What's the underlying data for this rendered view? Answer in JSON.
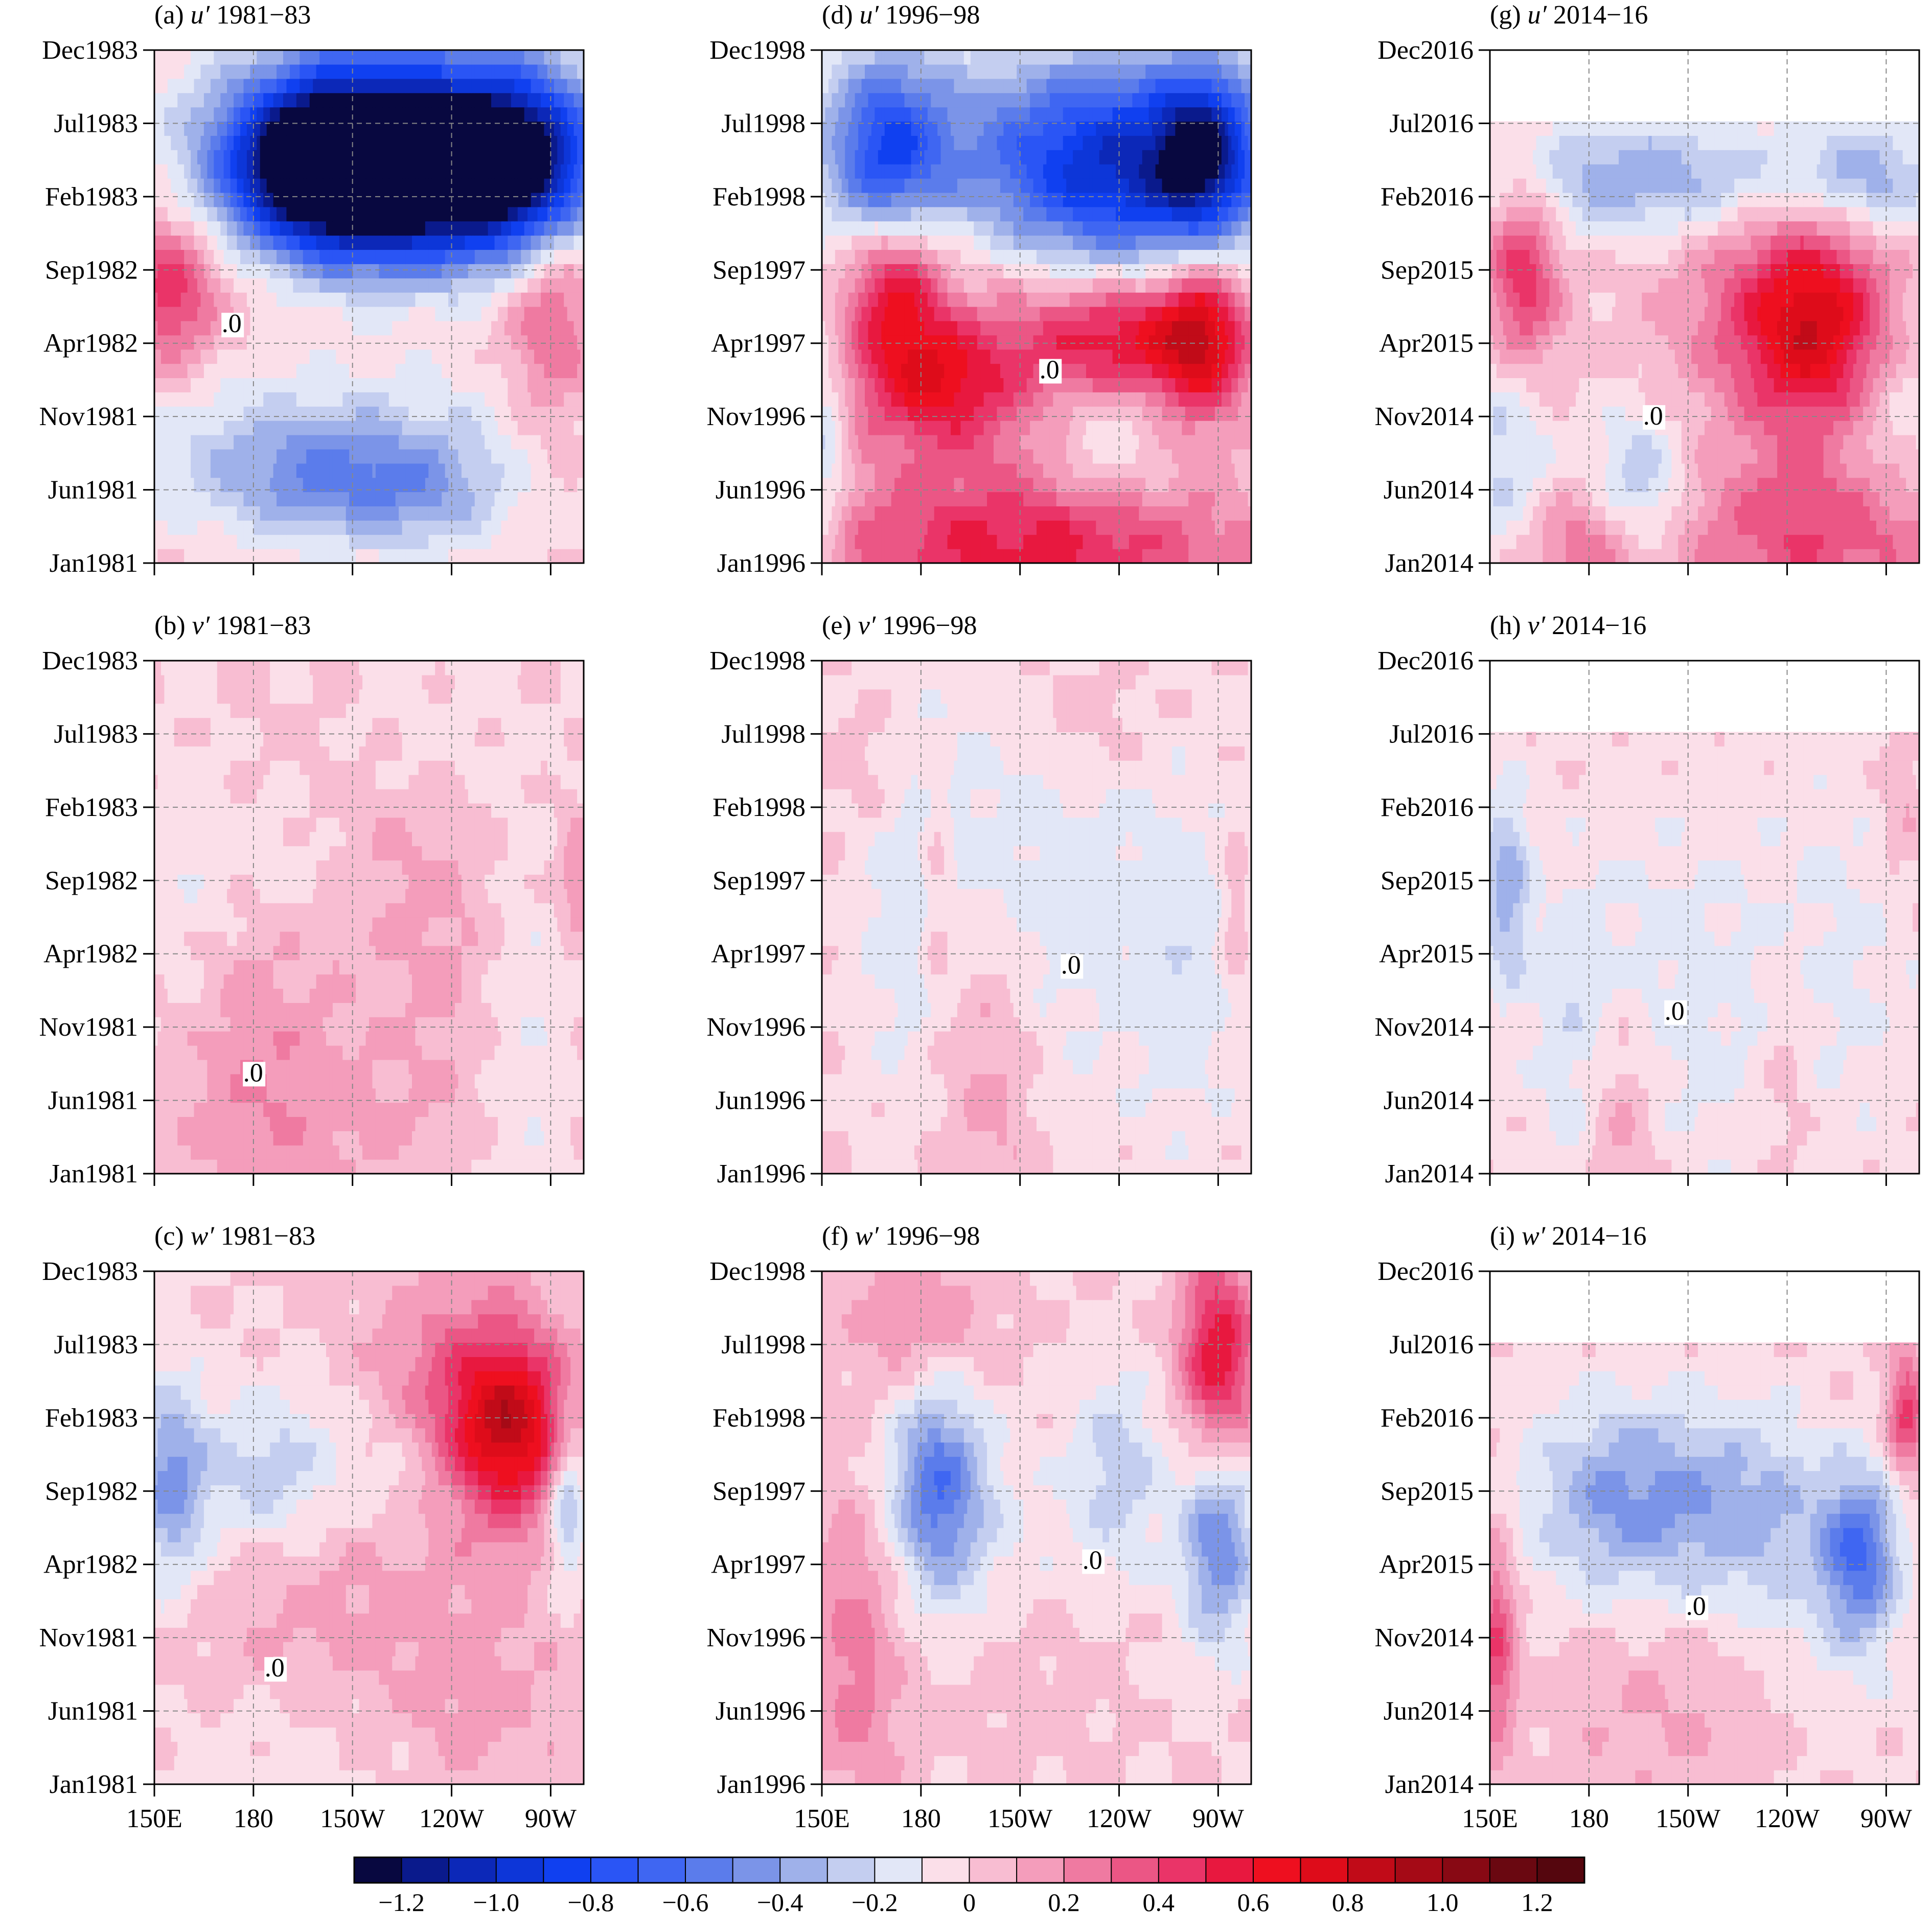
{
  "chart_data": {
    "type": "heatmap",
    "x_ticks": [
      "150E",
      "180",
      "150W",
      "120W",
      "90W"
    ],
    "x_tick_lon": [
      150,
      180,
      210,
      240,
      270
    ],
    "x_range_lon": [
      150,
      280
    ],
    "contour_label": ".0",
    "colorbar": {
      "ticks": [
        "−1.2",
        "−1.0",
        "−0.8",
        "−0.6",
        "−0.4",
        "−0.2",
        "0",
        "0.2",
        "0.4",
        "0.6",
        "0.8",
        "1.0",
        "1.2"
      ],
      "levels": [
        -1.3,
        1.3
      ],
      "colors": [
        "#080840",
        "#0a1a8c",
        "#0c28b8",
        "#0d36d8",
        "#1040f0",
        "#2a55f5",
        "#3f66f2",
        "#5b7ceb",
        "#7b94e8",
        "#9fb1ea",
        "#c4cef0",
        "#e2e7f7",
        "#fbdfe9",
        "#f8bdd2",
        "#f49dbb",
        "#ef7aa1",
        "#eb5685",
        "#ea3468",
        "#e8183f",
        "#ee0f1f",
        "#de0c1a",
        "#c10b18",
        "#a50a16",
        "#880914",
        "#6a0811",
        "#55060e"
      ]
    },
    "panels": [
      {
        "id": "a",
        "var": "u",
        "period": "1981−83",
        "y_ticks": [
          "Dec1983",
          "Jul1983",
          "Feb1983",
          "Sep1982",
          "Apr1982",
          "Nov1981",
          "Jun1981",
          "Jan1981"
        ],
        "months_with_data": 36,
        "blobs": [
          [
            225,
            27,
            30,
            5,
            -1.2
          ],
          [
            200,
            28,
            20,
            4,
            -0.9
          ],
          [
            260,
            28,
            15,
            4,
            -0.8
          ],
          [
            230,
            30,
            40,
            5,
            -0.5
          ],
          [
            155,
            19,
            10,
            4,
            0.4
          ],
          [
            270,
            17,
            10,
            6,
            0.3
          ],
          [
            215,
            20,
            60,
            4,
            0.15
          ],
          [
            195,
            6,
            25,
            3,
            -0.35
          ],
          [
            230,
            5,
            20,
            3,
            -0.3
          ],
          [
            200,
            10,
            60,
            4,
            -0.15
          ]
        ]
      },
      {
        "id": "d",
        "var": "u",
        "period": "1996−98",
        "y_ticks": [
          "Dec1998",
          "Jul1998",
          "Feb1998",
          "Sep1997",
          "Apr1997",
          "Nov1996",
          "Jun1996",
          "Jan1996"
        ],
        "months_with_data": 36,
        "blobs": [
          [
            170,
            28,
            12,
            5,
            -0.7
          ],
          [
            240,
            27,
            30,
            5,
            -0.8
          ],
          [
            265,
            29,
            10,
            4,
            -0.7
          ],
          [
            220,
            30,
            60,
            5,
            -0.3
          ],
          [
            172,
            20,
            10,
            4,
            0.6
          ],
          [
            265,
            16,
            10,
            4,
            0.65
          ],
          [
            240,
            16,
            20,
            3,
            0.5
          ],
          [
            185,
            13,
            15,
            3,
            0.45
          ],
          [
            200,
            9,
            40,
            12,
            0.25
          ],
          [
            220,
            1,
            50,
            3,
            0.35
          ],
          [
            235,
            9,
            15,
            3,
            -0.25
          ],
          [
            151,
            8,
            5,
            6,
            -0.3
          ]
        ]
      },
      {
        "id": "g",
        "var": "u",
        "period": "2014−16",
        "y_ticks": [
          "Dec2016",
          "Jul2016",
          "Feb2016",
          "Sep2015",
          "Apr2015",
          "Nov2014",
          "Jun2014",
          "Jan2014"
        ],
        "months_with_data": 31,
        "blobs": [
          [
            160,
            20,
            8,
            5,
            0.5
          ],
          [
            250,
            16,
            15,
            5,
            0.55
          ],
          [
            240,
            18,
            25,
            6,
            0.35
          ],
          [
            250,
            2,
            30,
            4,
            0.4
          ],
          [
            180,
            1,
            15,
            3,
            0.3
          ],
          [
            200,
            27,
            35,
            3,
            -0.4
          ],
          [
            265,
            27,
            15,
            3,
            -0.35
          ],
          [
            195,
            5,
            10,
            4,
            -0.35
          ],
          [
            155,
            8,
            10,
            6,
            -0.25
          ],
          [
            270,
            12,
            15,
            6,
            -0.2
          ]
        ]
      },
      {
        "id": "b",
        "var": "v",
        "period": "1981−83",
        "y_ticks": [
          "Dec1983",
          "Jul1983",
          "Feb1983",
          "Sep1982",
          "Apr1982",
          "Nov1981",
          "Jun1981",
          "Jan1981"
        ],
        "months_with_data": 36,
        "blobs": [
          [
            180,
            10,
            20,
            8,
            0.15
          ],
          [
            210,
            25,
            20,
            6,
            0.12
          ],
          [
            240,
            15,
            15,
            8,
            0.12
          ],
          [
            260,
            10,
            10,
            10,
            -0.12
          ],
          [
            190,
            22,
            15,
            4,
            -0.15
          ],
          [
            225,
            30,
            20,
            4,
            -0.1
          ],
          [
            278,
            21,
            4,
            3,
            0.2
          ],
          [
            200,
            4,
            30,
            4,
            0.1
          ],
          [
            160,
            18,
            10,
            8,
            -0.1
          ]
        ]
      },
      {
        "id": "e",
        "var": "v",
        "period": "1996−98",
        "y_ticks": [
          "Dec1998",
          "Jul1998",
          "Feb1998",
          "Sep1997",
          "Apr1997",
          "Nov1996",
          "Jun1996",
          "Jan1996"
        ],
        "months_with_data": 36,
        "blobs": [
          [
            180,
            20,
            15,
            10,
            -0.2
          ],
          [
            220,
            20,
            20,
            10,
            -0.15
          ],
          [
            260,
            15,
            15,
            10,
            -0.15
          ],
          [
            200,
            8,
            10,
            8,
            0.2
          ],
          [
            185,
            20,
            4,
            6,
            0.2
          ],
          [
            230,
            32,
            15,
            3,
            0.1
          ],
          [
            165,
            28,
            10,
            4,
            0.1
          ],
          [
            275,
            18,
            3,
            4,
            0.15
          ]
        ]
      },
      {
        "id": "h",
        "var": "v",
        "period": "2014−16",
        "y_ticks": [
          "Dec2016",
          "Jul2016",
          "Feb2016",
          "Sep2015",
          "Apr2015",
          "Nov2014",
          "Jun2014",
          "Jan2014"
        ],
        "months_with_data": 31,
        "blobs": [
          [
            155,
            20,
            5,
            5,
            -0.35
          ],
          [
            200,
            12,
            25,
            10,
            -0.15
          ],
          [
            255,
            15,
            20,
            10,
            -0.12
          ],
          [
            190,
            4,
            8,
            6,
            0.2
          ],
          [
            240,
            8,
            6,
            6,
            0.12
          ],
          [
            175,
            10,
            8,
            8,
            -0.1
          ],
          [
            275,
            25,
            5,
            4,
            0.12
          ]
        ]
      },
      {
        "id": "c",
        "var": "w",
        "period": "1981−83",
        "y_ticks": [
          "Dec1983",
          "Jul1983",
          "Feb1983",
          "Sep1982",
          "Apr1982",
          "Nov1981",
          "Jun1981",
          "Jan1981"
        ],
        "months_with_data": 36,
        "blobs": [
          [
            258,
            25,
            12,
            4,
            0.6
          ],
          [
            245,
            27,
            20,
            6,
            0.35
          ],
          [
            155,
            21,
            8,
            5,
            -0.45
          ],
          [
            185,
            22,
            15,
            4,
            -0.3
          ],
          [
            225,
            22,
            15,
            4,
            -0.2
          ],
          [
            275,
            20,
            4,
            4,
            -0.4
          ],
          [
            210,
            12,
            40,
            8,
            0.15
          ],
          [
            190,
            3,
            30,
            4,
            -0.1
          ],
          [
            250,
            5,
            15,
            4,
            0.1
          ]
        ]
      },
      {
        "id": "f",
        "var": "w",
        "period": "1996−98",
        "y_ticks": [
          "Dec1998",
          "Jul1998",
          "Feb1998",
          "Sep1997",
          "Apr1997",
          "Nov1996",
          "Jun1996",
          "Jan1996"
        ],
        "months_with_data": 36,
        "blobs": [
          [
            270,
            30,
            8,
            5,
            0.6
          ],
          [
            185,
            21,
            10,
            5,
            -0.55
          ],
          [
            270,
            17,
            8,
            5,
            -0.5
          ],
          [
            240,
            22,
            10,
            5,
            -0.25
          ],
          [
            160,
            9,
            10,
            8,
            0.25
          ],
          [
            210,
            10,
            20,
            6,
            0.12
          ],
          [
            180,
            33,
            15,
            4,
            0.2
          ],
          [
            205,
            15,
            20,
            6,
            -0.15
          ]
        ]
      },
      {
        "id": "i",
        "var": "w",
        "period": "2014−16",
        "y_ticks": [
          "Dec2016",
          "Jul2016",
          "Feb2016",
          "Sep2015",
          "Apr2015",
          "Nov2014",
          "Jun2014",
          "Jan2014"
        ],
        "months_with_data": 31,
        "blobs": [
          [
            262,
            16,
            8,
            4,
            -0.55
          ],
          [
            190,
            20,
            20,
            5,
            -0.4
          ],
          [
            230,
            19,
            20,
            5,
            -0.3
          ],
          [
            276,
            26,
            4,
            3,
            0.45
          ],
          [
            152,
            10,
            4,
            5,
            0.4
          ],
          [
            210,
            6,
            30,
            6,
            0.12
          ],
          [
            250,
            8,
            20,
            6,
            -0.1
          ]
        ]
      }
    ]
  }
}
